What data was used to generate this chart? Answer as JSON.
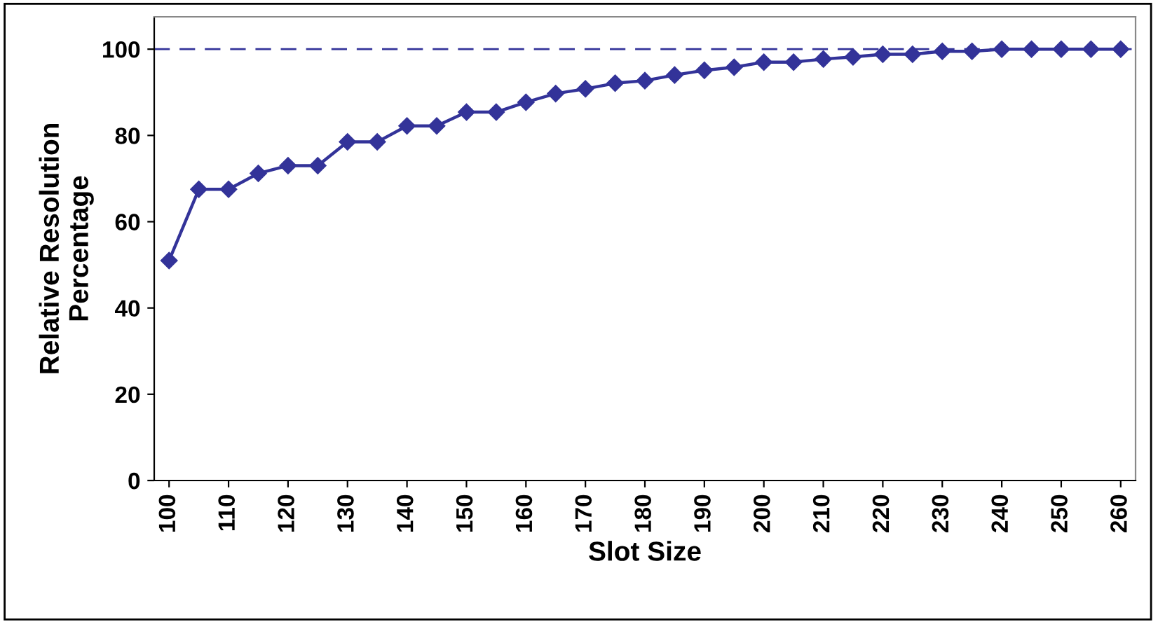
{
  "chart_data": {
    "type": "line",
    "xlabel": "Slot Size",
    "ylabel": "Relative Resolution Percentage",
    "x": [
      100,
      105,
      110,
      115,
      120,
      125,
      130,
      135,
      140,
      145,
      150,
      155,
      160,
      165,
      170,
      175,
      180,
      185,
      190,
      195,
      200,
      205,
      210,
      215,
      220,
      225,
      230,
      235,
      240,
      245,
      250,
      255,
      260
    ],
    "series": [
      {
        "color": "#333399",
        "values": [
          51,
          67.5,
          67.5,
          71.2,
          73,
          73,
          78.5,
          78.5,
          82.2,
          82.2,
          85.4,
          85.4,
          87.7,
          89.7,
          90.8,
          92.1,
          92.7,
          94,
          95.1,
          95.8,
          97,
          97,
          97.7,
          98.2,
          98.8,
          98.8,
          99.5,
          99.5,
          100,
          100,
          100,
          100,
          100
        ]
      }
    ],
    "xlim": [
      97.5,
      262.5
    ],
    "xticks": [
      100,
      110,
      120,
      130,
      140,
      150,
      160,
      170,
      180,
      190,
      200,
      210,
      220,
      230,
      240,
      250,
      260
    ],
    "ylim": [
      0,
      107.5
    ],
    "yticks": [
      0,
      20,
      40,
      60,
      80,
      100
    ],
    "ref_lines": [
      {
        "axis": "y",
        "value": 100,
        "color": "#333399",
        "line_style": "dashed"
      }
    ],
    "marker": "diamond",
    "line_style": "solid",
    "grid": false,
    "legend": false
  }
}
